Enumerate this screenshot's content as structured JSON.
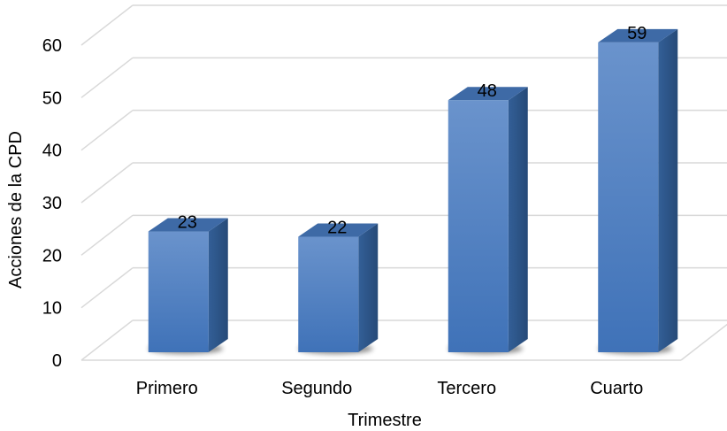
{
  "chart_data": {
    "type": "bar",
    "style": "3d-column",
    "categories": [
      "Primero",
      "Segundo",
      "Tercero",
      "Cuarto"
    ],
    "values": [
      23,
      22,
      48,
      59
    ],
    "data_labels": [
      "23",
      "22",
      "48",
      "59"
    ],
    "title": "",
    "xlabel": "Trimestre",
    "ylabel": "Acciones de la CPD",
    "ylim": [
      0,
      60
    ],
    "yticks": [
      0,
      10,
      20,
      30,
      40,
      50,
      60
    ],
    "grid": true,
    "legend": "none",
    "colors": {
      "bar_front_light": "#6a93cc",
      "bar_front_dark": "#3f72b8",
      "bar_side": "#2e5689",
      "bar_top": "#3e6aa6",
      "gridline": "#d9d9d9",
      "floor": "#d9d9d9"
    }
  }
}
